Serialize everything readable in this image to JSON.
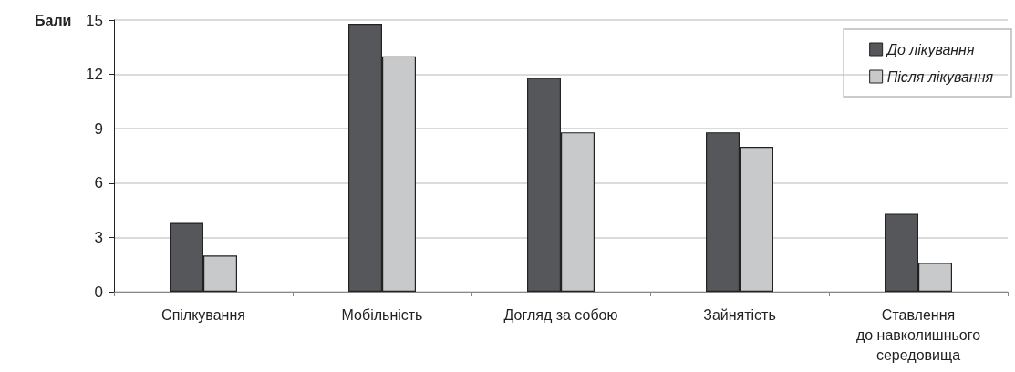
{
  "chart_data": {
    "type": "bar",
    "ylabel": "Бали",
    "categories": [
      "Спілкування",
      "Мобільність",
      "Догляд за собою",
      "Зайнятість",
      "Ставлення\nдо навколишнього\nсередовища"
    ],
    "series": [
      {
        "name": "До лікування",
        "color": "#55575a",
        "values": [
          3.8,
          14.8,
          11.8,
          8.8,
          4.3
        ]
      },
      {
        "name": "Після лікування",
        "color": "#c8c9cb",
        "values": [
          2.0,
          13.0,
          8.8,
          8.0,
          1.6
        ]
      }
    ],
    "ylim": [
      0,
      15
    ],
    "yticks": [
      0,
      3,
      6,
      9,
      12,
      15
    ],
    "grid": "y",
    "legend": "top right"
  }
}
